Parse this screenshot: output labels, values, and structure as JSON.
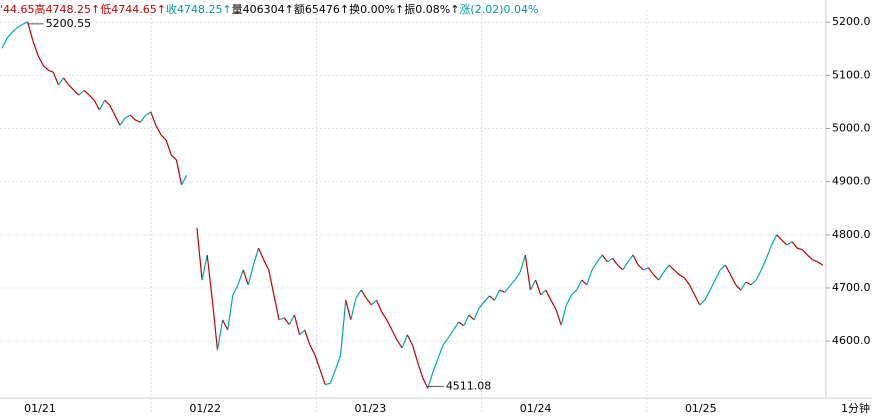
{
  "chart_data": {
    "type": "line",
    "header": [
      {
        "text": "'44.65",
        "color": "#c00000"
      },
      {
        "text": "高4748.25↑",
        "color": "#c00000"
      },
      {
        "text": "低4744.65↑",
        "color": "#c00000"
      },
      {
        "text": "收4748.25↑",
        "color": "#009999"
      },
      {
        "text": "量406304↑额65476↑换0.00%↑振0.08%↑",
        "color": "#000000"
      },
      {
        "text": "涨(2.02)0.04%",
        "color": "#009999"
      }
    ],
    "xlabels": [
      "01/21",
      "01/22",
      "01/23",
      "01/24",
      "01/25"
    ],
    "period": "1分钟",
    "up_color": "#00a8a8",
    "down_color": "#c00000",
    "ylim": [
      4493,
      5223
    ],
    "yticks": [
      {
        "value": 4600,
        "label": "4600.0"
      },
      {
        "value": 4700,
        "label": "4700.0"
      },
      {
        "value": 4800,
        "label": "4800.0"
      },
      {
        "value": 4900,
        "label": "4900.0"
      },
      {
        "value": 5000,
        "label": "5000.0"
      },
      {
        "value": 5100,
        "label": "5100.0"
      },
      {
        "value": 5200,
        "label": "5200.0"
      }
    ],
    "grid": true,
    "values": [
      5151,
      5170,
      5181,
      5190,
      5196,
      5200.55,
      5166,
      5138,
      5119,
      5110,
      5106,
      5082,
      5095,
      5082,
      5072,
      5063,
      5072,
      5063,
      5053,
      5035,
      5053,
      5044,
      5025,
      5006,
      5020,
      5025,
      5016,
      5012,
      5025,
      5031,
      5006,
      4988,
      4978,
      4950,
      4941,
      4894,
      4912,
      null,
      4813,
      4715,
      4762,
      4677,
      4583,
      4640,
      4621,
      4687,
      4706,
      4734,
      4706,
      4743,
      4775,
      4753,
      4734,
      4687,
      4640,
      4644,
      4631,
      4649,
      4612,
      4621,
      4593,
      4574,
      4546,
      4518,
      4521,
      4546,
      4574,
      4677,
      4640,
      4681,
      4696,
      4681,
      4668,
      4677,
      4655,
      4640,
      4621,
      4602,
      4587,
      4612,
      4593,
      4561,
      4531,
      4511.08,
      4542,
      4568,
      4593,
      4606,
      4621,
      4636,
      4629,
      4649,
      4640,
      4662,
      4674,
      4685,
      4677,
      4696,
      4692,
      4704,
      4715,
      4730,
      4762,
      4696,
      4715,
      4687,
      4696,
      4677,
      4659,
      4630,
      4668,
      4687,
      4696,
      4715,
      4706,
      4734,
      4749,
      4762,
      4749,
      4756,
      4743,
      4734,
      4749,
      4762,
      4743,
      4734,
      4738,
      4725,
      4715,
      4730,
      4743,
      4734,
      4725,
      4719,
      4706,
      4687,
      4668,
      4677,
      4696,
      4715,
      4734,
      4743,
      4725,
      4706,
      4696,
      4711,
      4706,
      4715,
      4734,
      4756,
      4781,
      4800,
      4790,
      4781,
      4787,
      4775,
      4772,
      4762,
      4753,
      4749,
      4743
    ]
  }
}
